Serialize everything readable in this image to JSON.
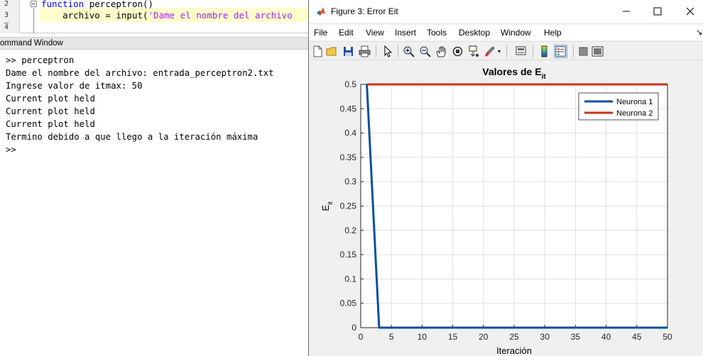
{
  "editor": {
    "lines": [
      {
        "num": "2",
        "keyword": "function",
        "rest": " perceptron()"
      },
      {
        "num": "3 –",
        "indent": "    ",
        "code": "archivo = input(",
        "string": "'Dame el nombre del archivo"
      },
      {
        "num": "4",
        "code": ""
      }
    ]
  },
  "command_window": {
    "title": "ommand Window",
    "lines": [
      ">> perceptron",
      "Dame el nombre del archivo: entrada_perceptron2.txt",
      "Ingrese valor de itmax: 50",
      "Current plot held",
      "Current plot held",
      "Current plot held",
      "Termino debido a que llego a la iteración máxima",
      ">>"
    ]
  },
  "figure": {
    "title": "Figure 3: Error Eit",
    "menus": [
      "File",
      "Edit",
      "View",
      "Insert",
      "Tools",
      "Desktop",
      "Window",
      "Help"
    ],
    "toolbar_icons": [
      "new-figure-icon",
      "open-file-icon",
      "save-icon",
      "print-icon",
      "pointer-icon",
      "zoom-in-icon",
      "zoom-out-icon",
      "pan-hand-icon",
      "rotate-3d-icon",
      "data-cursor-icon",
      "brush-icon",
      "link-plot-icon",
      "colorbar-icon",
      "legend-icon",
      "hide-plot-tools-icon",
      "show-plot-tools-icon"
    ],
    "colors": {
      "titlebar": "#ffffff",
      "background": "#f0f0f0"
    }
  },
  "chart_data": {
    "type": "line",
    "title": "Valores de E",
    "title_subscript": "it",
    "xlabel": "Iteración",
    "ylabel": "E",
    "ylabel_subscript": "it",
    "xlim": [
      0,
      50
    ],
    "ylim": [
      0,
      0.5
    ],
    "xticks": [
      0,
      5,
      10,
      15,
      20,
      25,
      30,
      35,
      40,
      45,
      50
    ],
    "yticks": [
      0,
      0.05,
      0.1,
      0.15,
      0.2,
      0.25,
      0.3,
      0.35,
      0.4,
      0.45,
      0.5
    ],
    "xtick_labels": [
      "0",
      "5",
      "10",
      "15",
      "20",
      "25",
      "30",
      "35",
      "40",
      "45",
      "50"
    ],
    "ytick_labels": [
      "0",
      "0.05",
      "0.1",
      "0.15",
      "0.2",
      "0.25",
      "0.3",
      "0.35",
      "0.4",
      "0.45",
      "0.5"
    ],
    "grid": true,
    "legend_position": "top-right",
    "series": [
      {
        "name": "Neurona 1",
        "color": "#0b4f9c",
        "x": [
          1,
          2,
          3,
          4,
          50
        ],
        "y": [
          0.5,
          0.25,
          0,
          0,
          0
        ]
      },
      {
        "name": "Neurona 2",
        "color": "#c8321e",
        "x": [
          1,
          50
        ],
        "y": [
          0.5,
          0.5
        ]
      }
    ]
  }
}
